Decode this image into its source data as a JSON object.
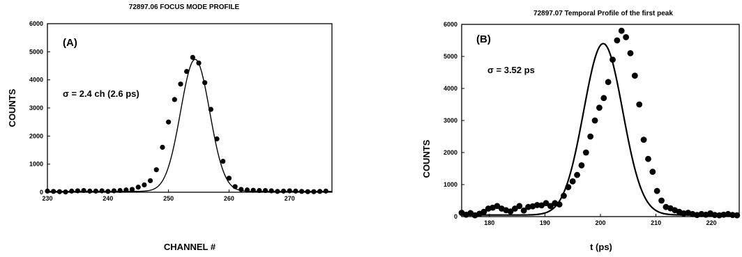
{
  "chart_data": [
    {
      "type": "scatter",
      "title": "72897.06 FOCUS MODE PROFILE",
      "xlabel": "CHANNEL #",
      "ylabel": "COUNTS",
      "panel_label": "(A)",
      "annotation": "σ = 2.4 ch (2.6 ps)",
      "xlim": [
        230,
        277
      ],
      "ylim": [
        0,
        6000
      ],
      "xticks": [
        230,
        240,
        250,
        260,
        270
      ],
      "yticks": [
        0,
        1000,
        2000,
        3000,
        4000,
        5000,
        6000
      ],
      "fit": {
        "shape": "gaussian",
        "amplitude": 4700,
        "center": 254.4,
        "sigma": 2.4,
        "baseline": 30
      },
      "series": [
        {
          "x": [
            230,
            231,
            232,
            233,
            234,
            235,
            236,
            237,
            238,
            239,
            240,
            241,
            242,
            243,
            244,
            245,
            246,
            247,
            248,
            249,
            250,
            251,
            252,
            253,
            254,
            255,
            256,
            257,
            258,
            259,
            260,
            261,
            262,
            263,
            264,
            265,
            266,
            267,
            268,
            269,
            270,
            271,
            272,
            273,
            274,
            275,
            276
          ],
          "y": [
            40,
            30,
            20,
            10,
            40,
            50,
            60,
            40,
            40,
            50,
            30,
            50,
            60,
            80,
            100,
            180,
            260,
            410,
            800,
            1600,
            2500,
            3300,
            3850,
            4300,
            4800,
            4600,
            3900,
            2950,
            1900,
            1100,
            500,
            200,
            100,
            80,
            70,
            60,
            60,
            50,
            30,
            40,
            50,
            40,
            30,
            20,
            20,
            30,
            40
          ]
        }
      ]
    },
    {
      "type": "scatter",
      "title": "72897.07 Temporal Profile of the first peak",
      "xlabel": "t (ps)",
      "ylabel": "COUNTS",
      "panel_label": "(B)",
      "annotation": "σ = 3.52 ps",
      "xlim": [
        175,
        225
      ],
      "ylim": [
        0,
        6000
      ],
      "xticks": [
        180,
        190,
        200,
        210,
        220
      ],
      "yticks": [
        0,
        1000,
        2000,
        3000,
        4000,
        5000,
        6000
      ],
      "fit": {
        "shape": "gaussian",
        "amplitude": 5350,
        "center": 200.5,
        "sigma": 3.52,
        "baseline": 50
      },
      "series": [
        {
          "x": [
            175.0,
            175.8,
            176.6,
            177.4,
            178.2,
            179.0,
            179.8,
            180.6,
            181.4,
            182.2,
            183.0,
            183.8,
            184.6,
            185.4,
            186.2,
            187.0,
            187.8,
            188.6,
            189.4,
            190.2,
            191.0,
            191.8,
            192.6,
            193.4,
            194.2,
            195.0,
            195.8,
            196.6,
            197.4,
            198.2,
            199.0,
            199.8,
            200.6,
            201.4,
            202.2,
            203.0,
            203.8,
            204.6,
            205.4,
            206.2,
            207.0,
            207.8,
            208.6,
            209.4,
            210.2,
            211.0,
            211.8,
            212.6,
            213.4,
            214.2,
            215.0,
            215.8,
            216.6,
            217.4,
            218.2,
            219.0,
            219.8,
            220.6,
            221.4,
            222.2,
            223.0,
            223.8,
            224.6
          ],
          "y": [
            120,
            60,
            110,
            40,
            90,
            150,
            250,
            280,
            330,
            250,
            200,
            160,
            250,
            330,
            190,
            300,
            320,
            360,
            350,
            420,
            330,
            420,
            380,
            650,
            920,
            1100,
            1300,
            1600,
            2000,
            2500,
            3000,
            3400,
            3700,
            4200,
            4900,
            5500,
            5800,
            5600,
            5100,
            4400,
            3500,
            2400,
            1800,
            1400,
            800,
            500,
            300,
            260,
            200,
            150,
            100,
            120,
            80,
            50,
            80,
            60,
            100,
            50,
            40,
            60,
            80,
            50,
            40
          ]
        }
      ]
    }
  ]
}
